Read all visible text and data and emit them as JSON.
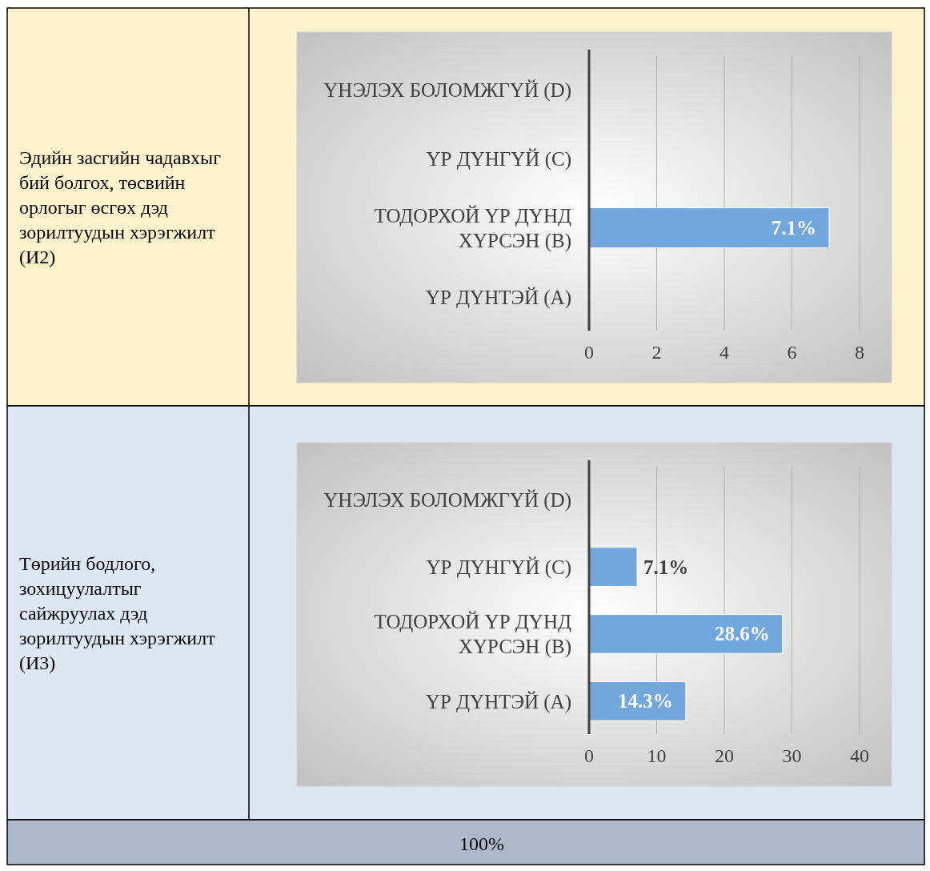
{
  "chart_data": [
    {
      "type": "bar",
      "orientation": "horizontal",
      "title": "Эдийн засгийн чадавхыг бий болгох, төсвийн орлогыг өсгөх дэд зорилтуудын хэрэгжилт (И2)",
      "categories": [
        "ҮНЭЛЭХ БОЛОМЖГҮЙ (D)",
        "ҮР ДҮНГҮЙ (C)",
        "ТОДОРХОЙ ҮР ДҮНД ХҮРСЭН (B)",
        "ҮР ДҮНТЭЙ (A)"
      ],
      "values": [
        null,
        null,
        7.1,
        null
      ],
      "value_labels": [
        null,
        null,
        "7.1%",
        null
      ],
      "color": "#71a7dc",
      "xlim": [
        0,
        8
      ],
      "xticks": [
        0,
        2,
        4,
        6,
        8
      ],
      "grid": "x"
    },
    {
      "type": "bar",
      "orientation": "horizontal",
      "title": "Төрийн бодлого, зохицуулалтыг сайжруулах дэд зорилтуудын хэрэгжилт (И3)",
      "categories": [
        "ҮНЭЛЭХ БОЛОМЖГҮЙ (D)",
        "ҮР ДҮНГҮЙ (C)",
        "ТОДОРХОЙ ҮР ДҮНД ХҮРСЭН (B)",
        "ҮР ДҮНТЭЙ (A)"
      ],
      "values": [
        null,
        7.1,
        28.6,
        14.3
      ],
      "value_labels": [
        null,
        "7.1%",
        "28.6%",
        "14.3%"
      ],
      "color": "#71a7dc",
      "xlim": [
        0,
        40
      ],
      "xticks": [
        0,
        10,
        20,
        30,
        40
      ],
      "grid": "x",
      "annotations": [
        "100%"
      ]
    }
  ]
}
